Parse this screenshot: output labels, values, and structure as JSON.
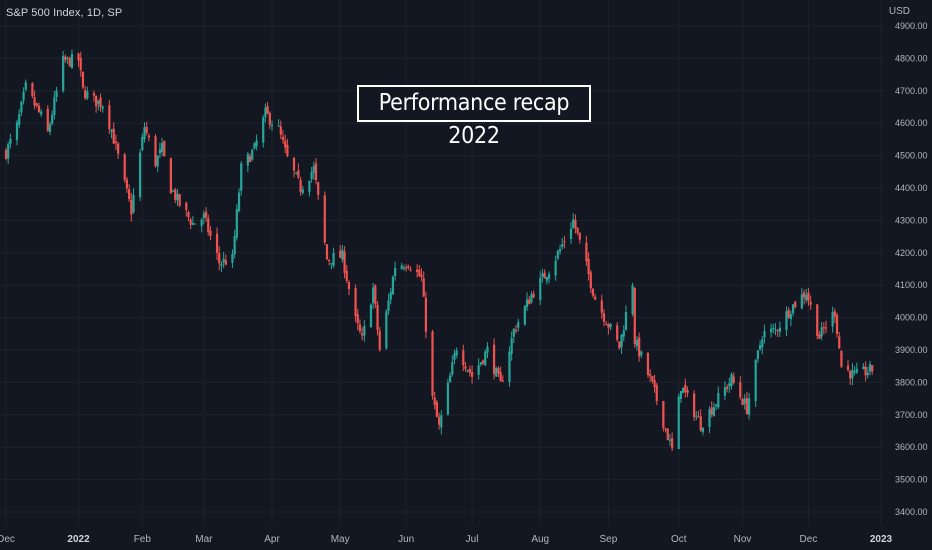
{
  "legend": {
    "symbol": "S&P 500 Index",
    "interval": "1D",
    "exchange": "SP"
  },
  "currency": "USD",
  "banner": "Performance recap 2022",
  "colors": {
    "up": "#26a69a",
    "down": "#ef5350",
    "grid": "#1e222d",
    "background": "#131722"
  },
  "chart_data": {
    "type": "candlestick",
    "title": "S&P 500 Index, 1D, SP",
    "ylabel": "USD",
    "ylim": [
      3400,
      4900
    ],
    "yticks": [
      3400,
      3500,
      3600,
      3700,
      3800,
      3900,
      4000,
      4100,
      4200,
      4300,
      4400,
      4500,
      4600,
      4700,
      4800,
      4900
    ],
    "ytick_labels": [
      "3400.00",
      "3500.00",
      "3600.00",
      "3700.00",
      "3800.00",
      "3900.00",
      "4000.00",
      "4100.00",
      "4200.00",
      "4300.00",
      "4400.00",
      "4500.00",
      "4600.00",
      "4700.00",
      "4800.00",
      "4900.00"
    ],
    "x_range": [
      "2021-12-01",
      "2023-01-03"
    ],
    "xticks": [
      {
        "date": "2021-12-01",
        "label": "Dec",
        "bold": false
      },
      {
        "date": "2022-01-03",
        "label": "2022",
        "bold": true
      },
      {
        "date": "2022-02-01",
        "label": "Feb",
        "bold": false
      },
      {
        "date": "2022-03-01",
        "label": "Mar",
        "bold": false
      },
      {
        "date": "2022-04-01",
        "label": "Apr",
        "bold": false
      },
      {
        "date": "2022-05-02",
        "label": "May",
        "bold": false
      },
      {
        "date": "2022-06-01",
        "label": "Jun",
        "bold": false
      },
      {
        "date": "2022-07-01",
        "label": "Jul",
        "bold": false
      },
      {
        "date": "2022-08-01",
        "label": "Aug",
        "bold": false
      },
      {
        "date": "2022-09-01",
        "label": "Sep",
        "bold": false
      },
      {
        "date": "2022-10-03",
        "label": "Oct",
        "bold": false
      },
      {
        "date": "2022-11-01",
        "label": "Nov",
        "bold": false
      },
      {
        "date": "2022-12-01",
        "label": "Dec",
        "bold": false
      },
      {
        "date": "2023-01-03",
        "label": "2023",
        "bold": true
      }
    ],
    "grid": true,
    "close_path": [
      [
        "2021-12-01",
        4510
      ],
      [
        "2021-12-06",
        4590
      ],
      [
        "2021-12-10",
        4710
      ],
      [
        "2021-12-13",
        4670
      ],
      [
        "2021-12-17",
        4620
      ],
      [
        "2021-12-20",
        4570
      ],
      [
        "2021-12-27",
        4790
      ],
      [
        "2022-01-03",
        4796
      ],
      [
        "2022-01-05",
        4700
      ],
      [
        "2022-01-10",
        4670
      ],
      [
        "2022-01-14",
        4660
      ],
      [
        "2022-01-18",
        4580
      ],
      [
        "2022-01-24",
        4410
      ],
      [
        "2022-01-27",
        4330
      ],
      [
        "2022-02-02",
        4590
      ],
      [
        "2022-02-07",
        4480
      ],
      [
        "2022-02-10",
        4520
      ],
      [
        "2022-02-14",
        4400
      ],
      [
        "2022-02-18",
        4350
      ],
      [
        "2022-02-24",
        4290
      ],
      [
        "2022-03-01",
        4310
      ],
      [
        "2022-03-08",
        4170
      ],
      [
        "2022-03-14",
        4180
      ],
      [
        "2022-03-18",
        4460
      ],
      [
        "2022-03-24",
        4520
      ],
      [
        "2022-03-29",
        4630
      ],
      [
        "2022-04-04",
        4580
      ],
      [
        "2022-04-08",
        4490
      ],
      [
        "2022-04-14",
        4400
      ],
      [
        "2022-04-20",
        4460
      ],
      [
        "2022-04-26",
        4180
      ],
      [
        "2022-05-03",
        4190
      ],
      [
        "2022-05-09",
        3990
      ],
      [
        "2022-05-12",
        3930
      ],
      [
        "2022-05-17",
        4090
      ],
      [
        "2022-05-20",
        3900
      ],
      [
        "2022-05-27",
        4160
      ],
      [
        "2022-06-02",
        4170
      ],
      [
        "2022-06-08",
        4120
      ],
      [
        "2022-06-13",
        3750
      ],
      [
        "2022-06-16",
        3660
      ],
      [
        "2022-06-24",
        3910
      ],
      [
        "2022-07-01",
        3820
      ],
      [
        "2022-07-08",
        3900
      ],
      [
        "2022-07-14",
        3790
      ],
      [
        "2022-07-20",
        3960
      ],
      [
        "2022-07-28",
        4070
      ],
      [
        "2022-08-05",
        4150
      ],
      [
        "2022-08-10",
        4210
      ],
      [
        "2022-08-16",
        4300
      ],
      [
        "2022-08-19",
        4230
      ],
      [
        "2022-08-26",
        4060
      ],
      [
        "2022-09-06",
        3910
      ],
      [
        "2022-09-12",
        4110
      ],
      [
        "2022-09-13",
        3930
      ],
      [
        "2022-09-21",
        3790
      ],
      [
        "2022-09-30",
        3590
      ],
      [
        "2022-10-04",
        3790
      ],
      [
        "2022-10-13",
        3670
      ],
      [
        "2022-10-21",
        3750
      ],
      [
        "2022-10-27",
        3810
      ],
      [
        "2022-11-03",
        3720
      ],
      [
        "2022-11-10",
        3950
      ],
      [
        "2022-11-16",
        3960
      ],
      [
        "2022-11-23",
        4030
      ],
      [
        "2022-11-30",
        4080
      ],
      [
        "2022-12-06",
        3940
      ],
      [
        "2022-12-13",
        4020
      ],
      [
        "2022-12-16",
        3850
      ],
      [
        "2022-12-22",
        3820
      ],
      [
        "2022-12-30",
        3840
      ]
    ]
  }
}
